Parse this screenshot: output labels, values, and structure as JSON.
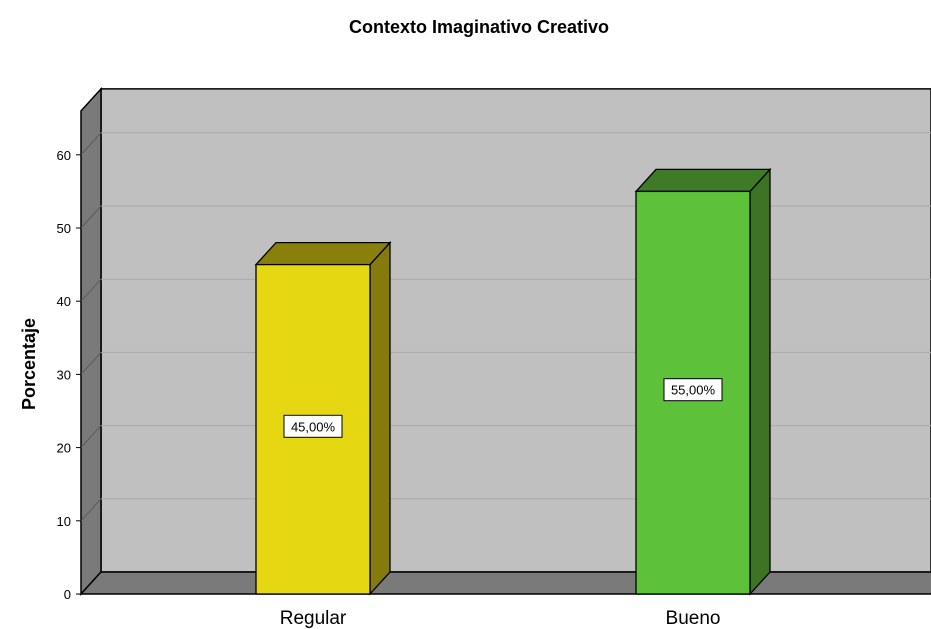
{
  "chart_data": {
    "type": "bar",
    "title": "Contexto Imaginativo Creativo",
    "xlabel": "",
    "ylabel": "Porcentaje",
    "categories": [
      "Regular",
      "Bueno"
    ],
    "values": [
      45,
      55
    ],
    "data_labels": [
      "45,00%",
      "55,00%"
    ],
    "y_ticks": [
      "0",
      "10",
      "20",
      "30",
      "40",
      "50",
      "60"
    ],
    "ylim": [
      0,
      66
    ],
    "grid": true,
    "style": "3d",
    "colors": {
      "Regular": "#e5d712",
      "Bueno": "#5ec13a",
      "plot_background": "#c0c0c0",
      "floor_wall": "#7a7a7a"
    }
  }
}
